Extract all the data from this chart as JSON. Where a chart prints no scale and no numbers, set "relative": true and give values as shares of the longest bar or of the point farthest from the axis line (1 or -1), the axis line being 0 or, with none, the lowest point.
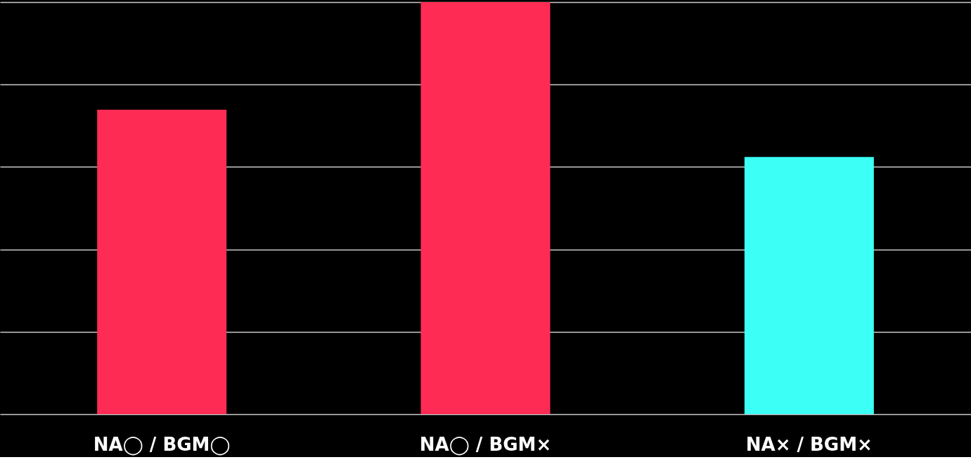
{
  "chart_data": {
    "type": "bar",
    "relative": true,
    "grid": "y",
    "categories": [
      "NA◯ / BGM◯",
      "NA◯ / BGM×",
      "NA× / BGM×"
    ],
    "values": [
      0.739,
      1,
      0.624
    ],
    "colors": [
      "#fe2c55",
      "#fe2c55",
      "#3cfff5"
    ]
  }
}
